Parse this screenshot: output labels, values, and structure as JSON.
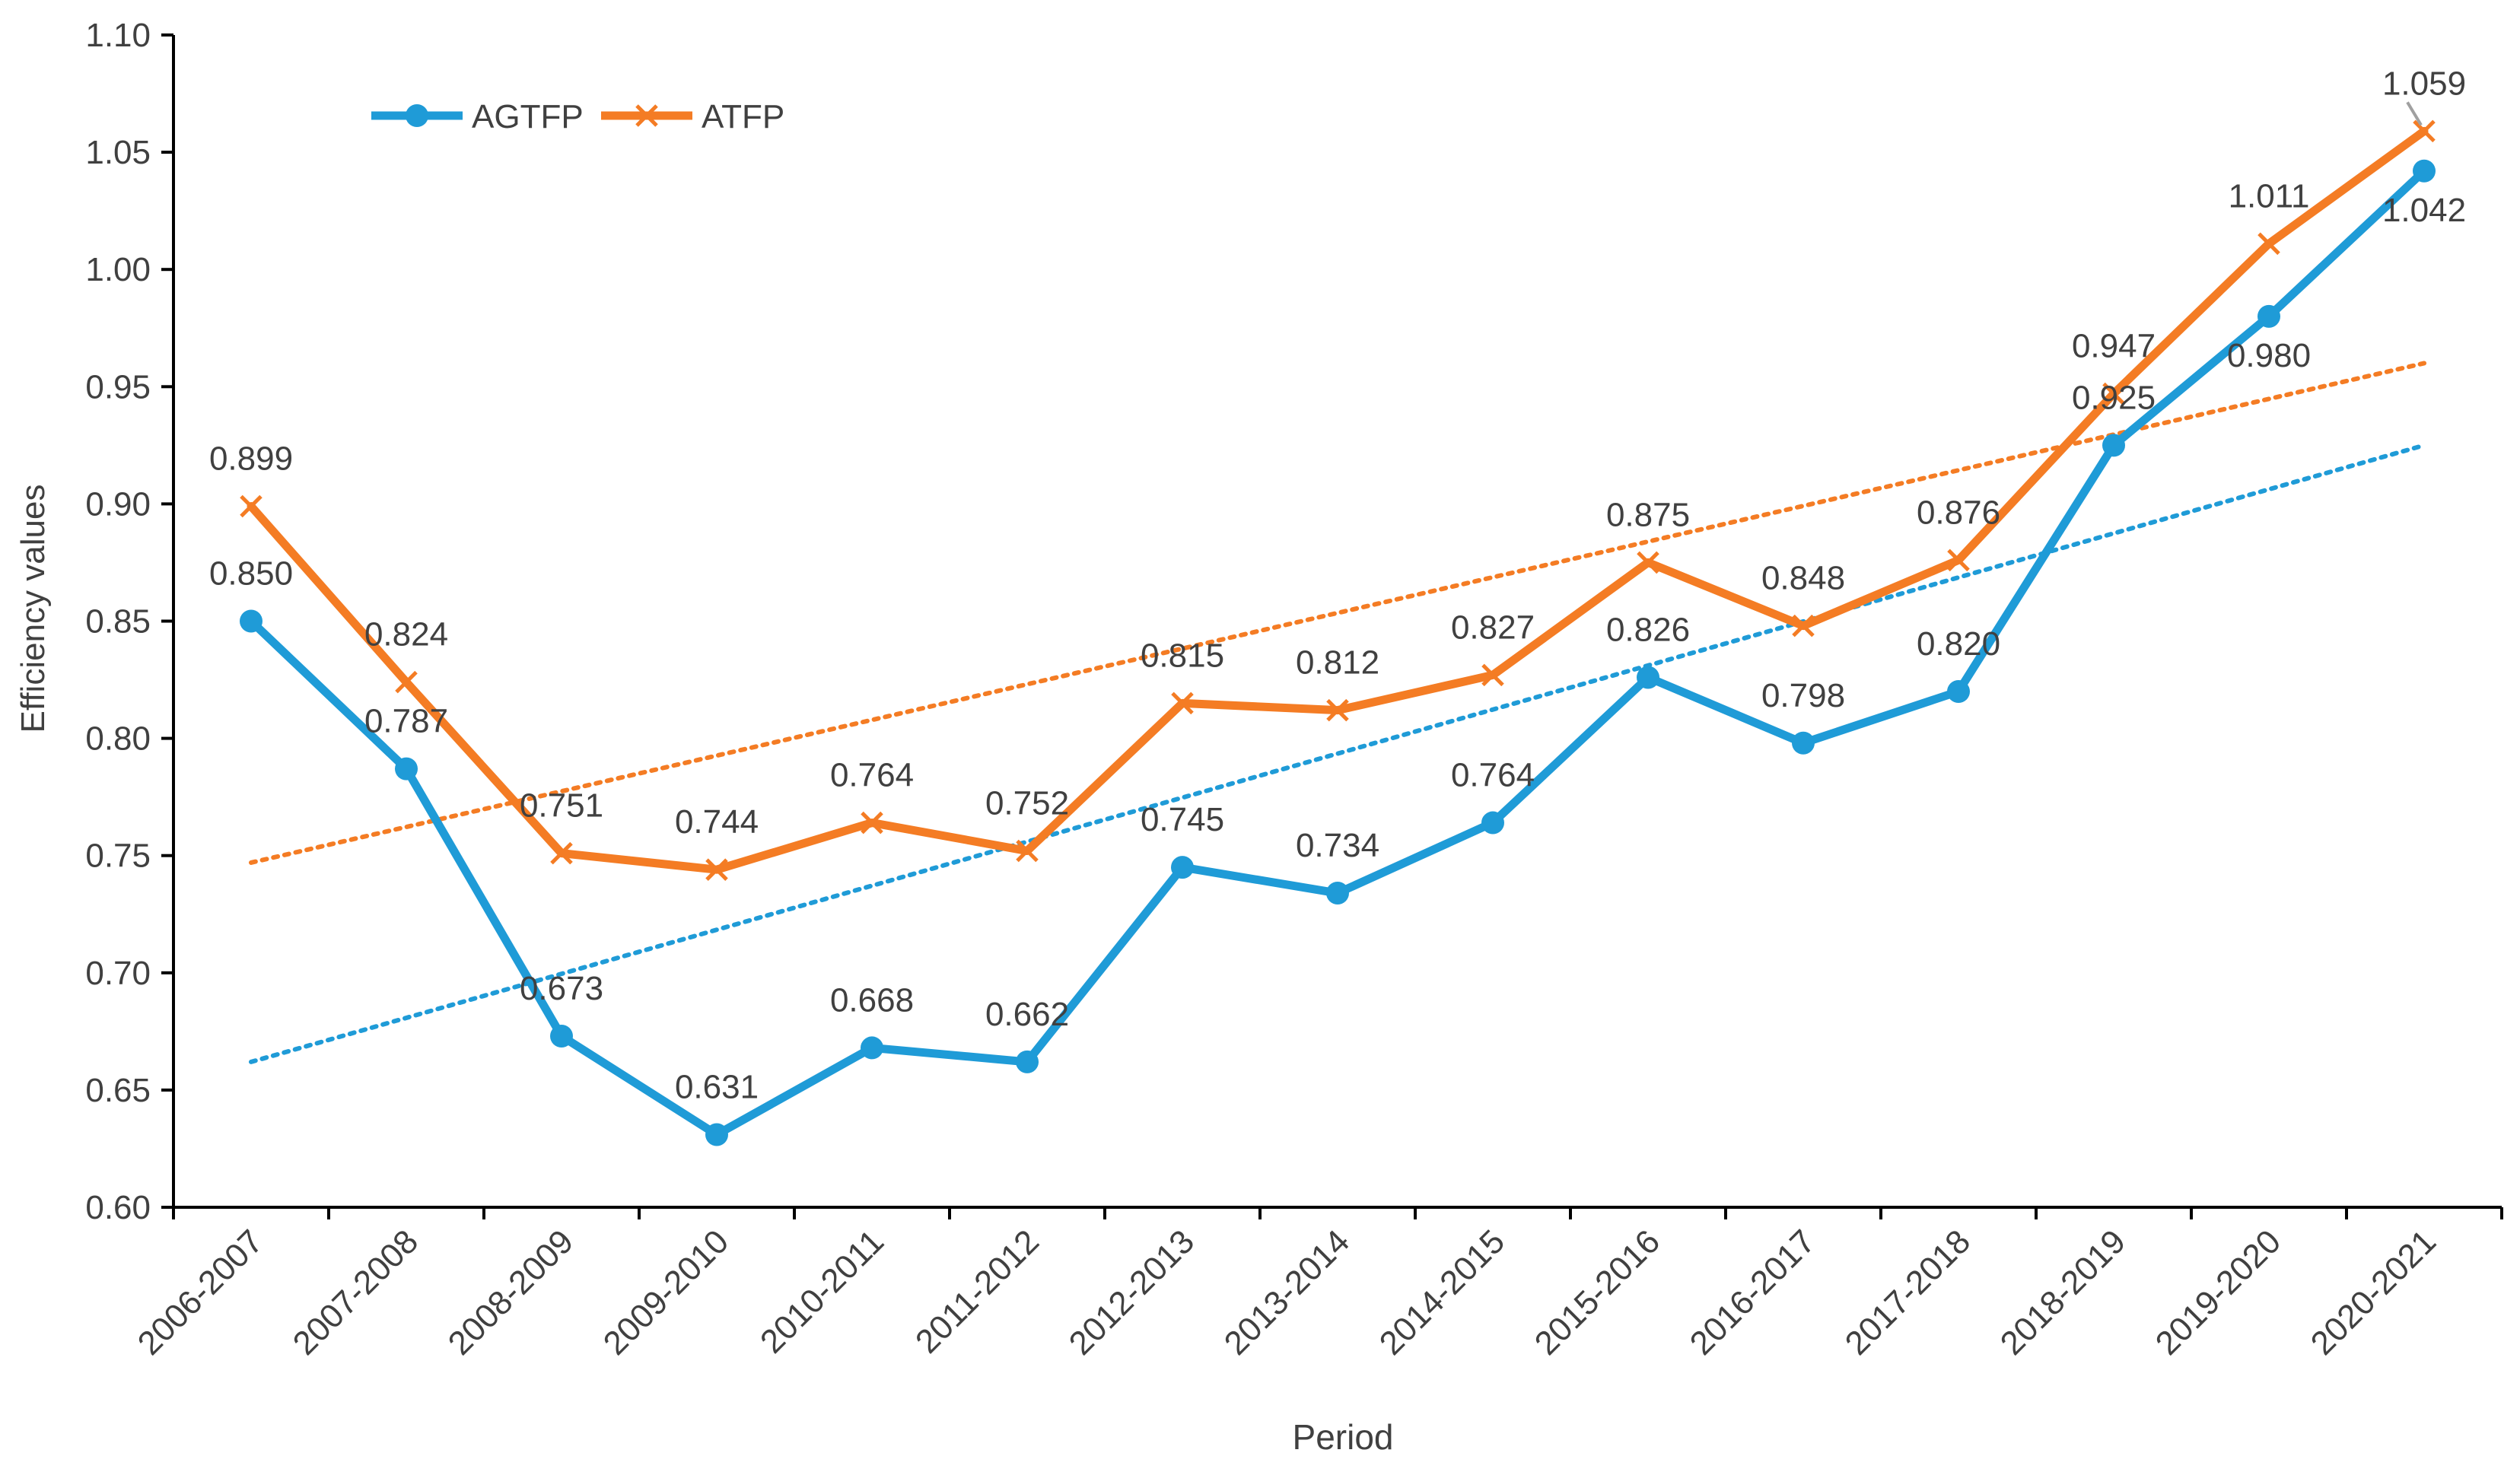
{
  "chart_data": {
    "type": "line",
    "title": "",
    "xlabel": "Period",
    "ylabel": "Efficiency values",
    "ylim": [
      0.6,
      1.1
    ],
    "yticks": [
      "0.60",
      "0.65",
      "0.70",
      "0.75",
      "0.80",
      "0.85",
      "0.90",
      "0.95",
      "1.00",
      "1.05",
      "1.10"
    ],
    "ytick_values": [
      0.6,
      0.65,
      0.7,
      0.75,
      0.8,
      0.85,
      0.9,
      0.95,
      1.0,
      1.05,
      1.1
    ],
    "categories": [
      "2006-2007",
      "2007-2008",
      "2008-2009",
      "2009-2010",
      "2010-2011",
      "2011-2012",
      "2012-2013",
      "2013-2014",
      "2014-2015",
      "2015-2016",
      "2016-2017",
      "2017-2018",
      "2018-2019",
      "2019-2020",
      "2020-2021"
    ],
    "legend_position": "top-left",
    "series": [
      {
        "name": "AGTFP",
        "color": "#1f9bd7",
        "marker": "circle",
        "values": [
          0.85,
          0.787,
          0.673,
          0.631,
          0.668,
          0.662,
          0.745,
          0.734,
          0.764,
          0.826,
          0.798,
          0.82,
          0.925,
          0.98,
          1.042
        ],
        "labels": [
          "0.850",
          "0.787",
          "0.673",
          "0.631",
          "0.668",
          "0.662",
          "0.745",
          "0.734",
          "0.764",
          "0.826",
          "0.798",
          "0.820",
          "0.925",
          "0.980",
          "1.042"
        ],
        "label_side": [
          "above",
          "above",
          "above",
          "above",
          "above",
          "above",
          "above",
          "above",
          "above",
          "above",
          "above",
          "above",
          "above",
          "below",
          "below"
        ],
        "trendline": {
          "style": "dotted",
          "start": 0.662,
          "end": 0.925
        }
      },
      {
        "name": "ATFP",
        "color": "#f47c24",
        "marker": "x",
        "values": [
          0.899,
          0.824,
          0.751,
          0.744,
          0.764,
          0.752,
          0.815,
          0.812,
          0.827,
          0.875,
          0.848,
          0.876,
          0.947,
          1.011,
          1.059
        ],
        "labels": [
          "0.899",
          "0.824",
          "0.751",
          "0.744",
          "0.764",
          "0.752",
          "0.815",
          "0.812",
          "0.827",
          "0.875",
          "0.848",
          "0.876",
          "0.947",
          "1.011",
          "1.059"
        ],
        "label_side": [
          "above",
          "above",
          "above",
          "above",
          "above",
          "above",
          "above",
          "above",
          "above",
          "above",
          "above",
          "above",
          "above",
          "above",
          "above"
        ],
        "trendline": {
          "style": "dotted",
          "start": 0.747,
          "end": 0.96
        }
      }
    ],
    "axis_color": "#000000",
    "text_color": "#404040"
  }
}
